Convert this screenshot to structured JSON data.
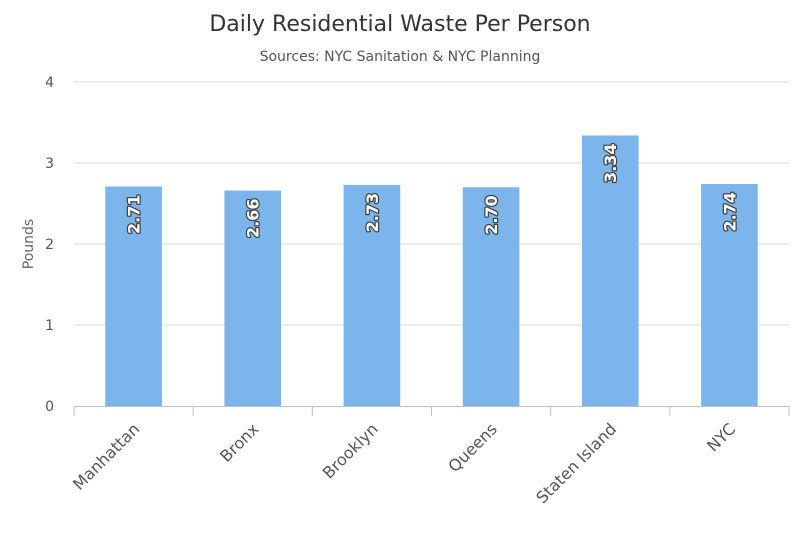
{
  "chart_data": {
    "type": "bar",
    "title": "Daily Residential Waste Per Person",
    "subtitle": "Sources: NYC Sanitation & NYC Planning",
    "ylabel": "Pounds",
    "xlabel": "",
    "categories": [
      "Manhattan",
      "Bronx",
      "Brooklyn",
      "Queens",
      "Staten Island",
      "NYC"
    ],
    "values": [
      2.71,
      2.66,
      2.73,
      2.7,
      3.34,
      2.74
    ],
    "data_labels": [
      "2.71",
      "2.66",
      "2.73",
      "2.70",
      "3.34",
      "2.74"
    ],
    "ylim": [
      0,
      4
    ],
    "yticks": [
      0,
      1,
      2,
      3,
      4
    ],
    "bar_color": "#7cb5ec",
    "grid": true,
    "legend": "none"
  }
}
